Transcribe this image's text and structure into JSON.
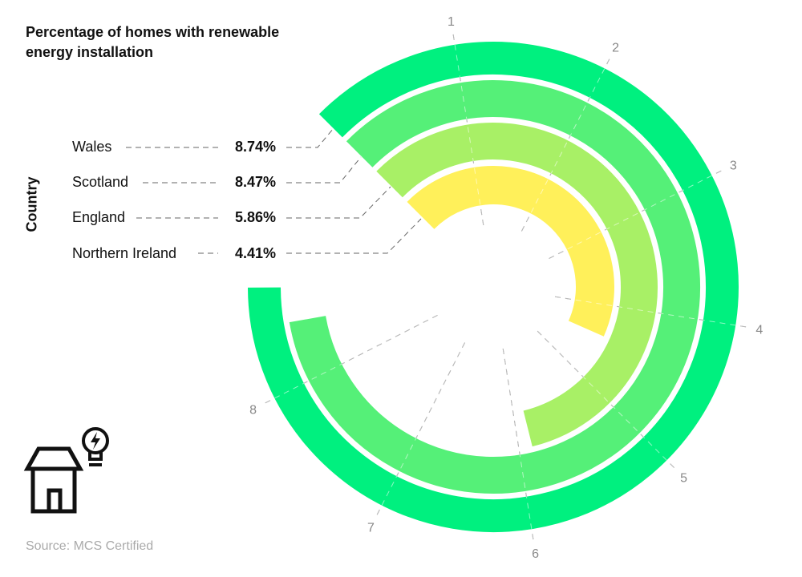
{
  "chart_data": {
    "type": "radial-bar",
    "title": "Percentage of homes with renewable energy installation",
    "ylabel": "Country",
    "categories": [
      "Wales",
      "Scotland",
      "England",
      "Northern Ireland"
    ],
    "values": [
      8.74,
      8.47,
      5.86,
      4.41
    ],
    "value_labels": [
      "8.74%",
      "8.47%",
      "5.86%",
      "4.41%"
    ],
    "colors": [
      "#00f07f",
      "#55f078",
      "#a8f066",
      "#fff05a"
    ],
    "axis_max": 10,
    "ticks": [
      "1",
      "2",
      "3",
      "4",
      "5",
      "6",
      "7",
      "8"
    ],
    "grid": true
  },
  "source": "Source: MCS Certified",
  "icon": "house-with-lightbulb-icon"
}
